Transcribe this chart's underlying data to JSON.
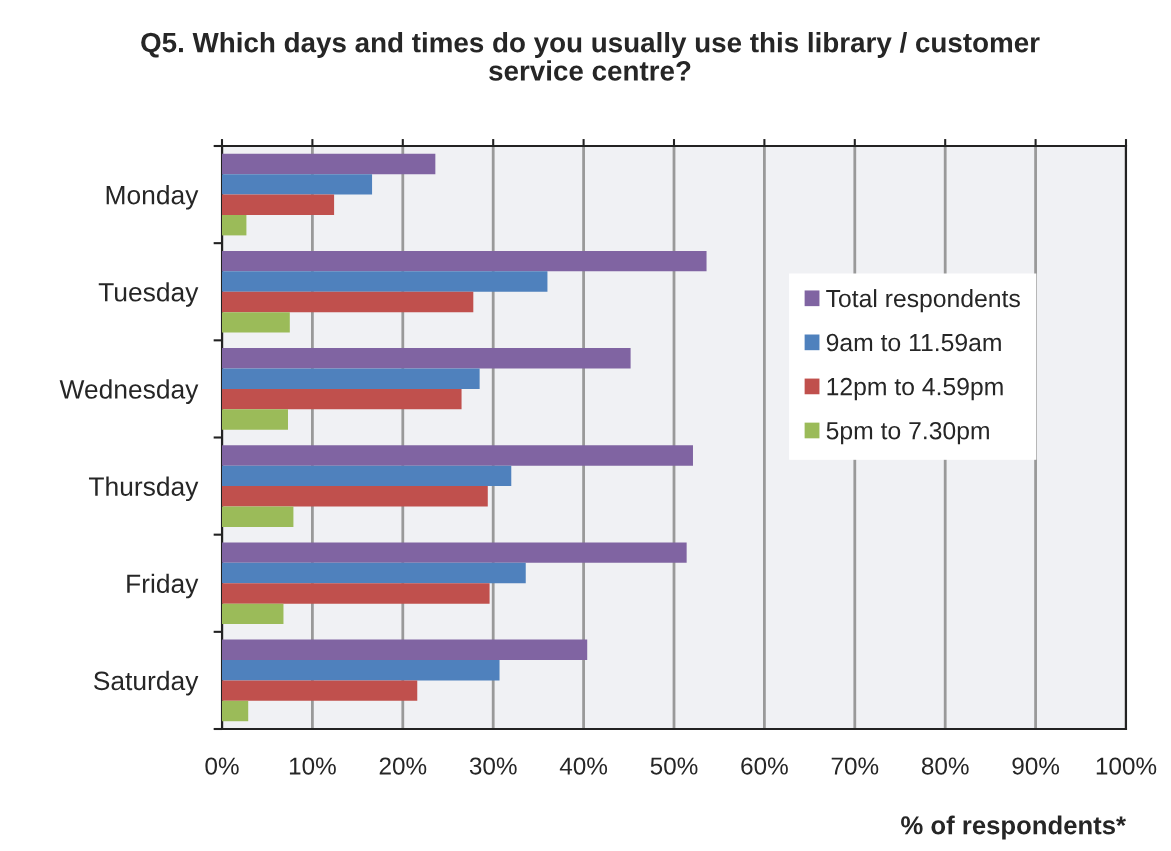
{
  "chart_data": {
    "type": "bar",
    "orientation": "horizontal",
    "title": "Q5. Which days and times do you usually use this library / customer service centre?",
    "xlabel": "% of respondents*",
    "categories": [
      "Monday",
      "Tuesday",
      "Wednesday",
      "Thursday",
      "Friday",
      "Saturday"
    ],
    "series": [
      {
        "name": "Total respondents",
        "color": "#8064a2",
        "values": [
          23.6,
          53.6,
          45.2,
          52.1,
          51.4,
          40.4
        ]
      },
      {
        "name": "9am to 11.59am",
        "color": "#4f81bd",
        "values": [
          16.6,
          36.0,
          28.5,
          32.0,
          33.6,
          30.7
        ]
      },
      {
        "name": "12pm to 4.59pm",
        "color": "#c0504d",
        "values": [
          12.4,
          27.8,
          26.5,
          29.4,
          29.6,
          21.6
        ]
      },
      {
        "name": "5pm to 7.30pm",
        "color": "#9bbb59",
        "values": [
          2.7,
          7.5,
          7.3,
          7.9,
          6.8,
          2.9
        ]
      }
    ],
    "xlim": [
      0,
      100
    ],
    "xticks": [
      {
        "value": 0,
        "label": "0%"
      },
      {
        "value": 10,
        "label": "10%"
      },
      {
        "value": 20,
        "label": "20%"
      },
      {
        "value": 30,
        "label": "30%"
      },
      {
        "value": 40,
        "label": "40%"
      },
      {
        "value": 50,
        "label": "50%"
      },
      {
        "value": 60,
        "label": "60%"
      },
      {
        "value": 70,
        "label": "70%"
      },
      {
        "value": 80,
        "label": "80%"
      },
      {
        "value": 90,
        "label": "90%"
      },
      {
        "value": 100,
        "label": "100%"
      }
    ],
    "grid": "x",
    "legend": "right"
  }
}
